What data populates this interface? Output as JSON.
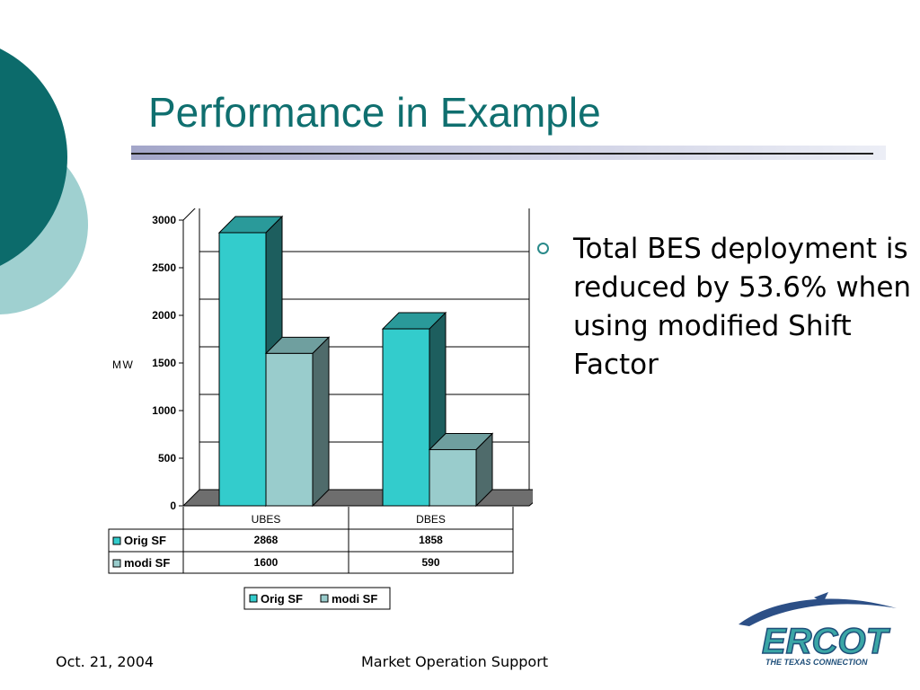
{
  "slide": {
    "title": "Performance in Example",
    "bullet": "Total BES deployment is reduced by 53.6% when using modified Shift Factor",
    "footer_date": "Oct. 21, 2004",
    "footer_center": "Market Operation Support",
    "logo_text": "ERCOT",
    "logo_tagline": "THE TEXAS CONNECTION"
  },
  "colors": {
    "teal_dark": "#0c6b6b",
    "teal_light": "#9fd0d0",
    "title": "#0f6f6f",
    "orig_sf_front": "#33cccc",
    "orig_sf_top": "#2a9a9a",
    "orig_sf_side": "#1d5e5e",
    "modi_sf_front": "#99cccc",
    "modi_sf_top": "#6f9f9f",
    "modi_sf_side": "#4f6b6b"
  },
  "chart_data": {
    "type": "bar",
    "categories": [
      "UBES",
      "DBES"
    ],
    "series": [
      {
        "name": "Orig SF",
        "values": [
          2868,
          1858
        ]
      },
      {
        "name": "modi SF",
        "values": [
          1600,
          590
        ]
      }
    ],
    "ylabel": "MW",
    "ylim": [
      0,
      3000
    ],
    "yticks": [
      0,
      500,
      1000,
      1500,
      2000,
      2500,
      3000
    ],
    "grid": true,
    "legend": "bottom-center",
    "data_table": true,
    "three_d": true
  }
}
